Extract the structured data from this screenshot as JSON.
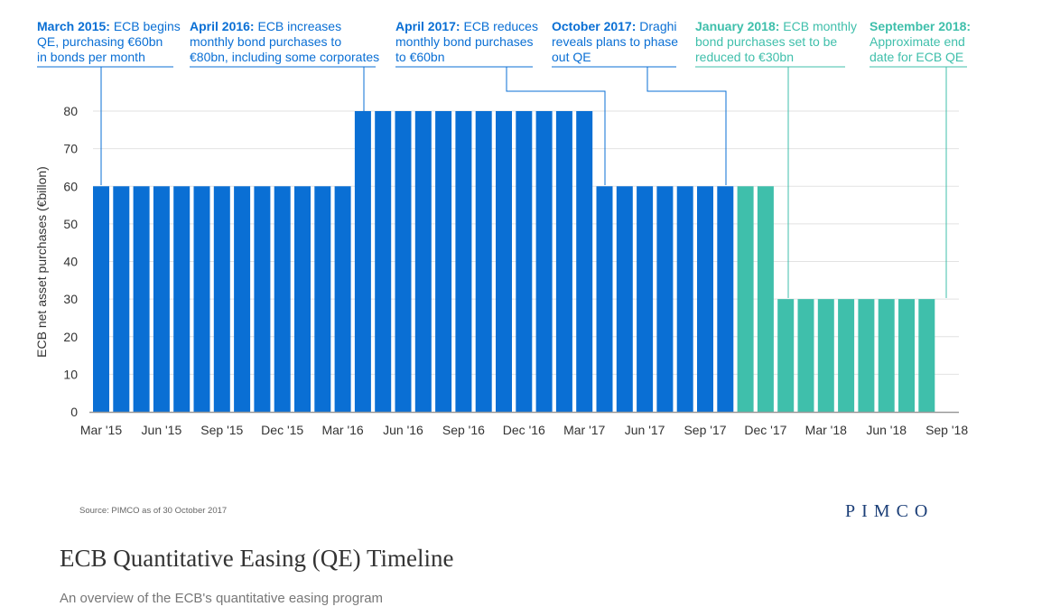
{
  "chart_data": {
    "type": "bar",
    "ylabel": "ECB net asset purchases (€billon)",
    "ylim": [
      0,
      80
    ],
    "yticks": [
      0,
      10,
      20,
      30,
      40,
      50,
      60,
      70,
      80
    ],
    "grid": true,
    "categories": [
      "Mar 2015",
      "Apr 2015",
      "May 2015",
      "Jun 2015",
      "Jul 2015",
      "Aug 2015",
      "Sep 2015",
      "Oct 2015",
      "Nov 2015",
      "Dec 2015",
      "Jan 2016",
      "Feb 2016",
      "Mar 2016",
      "Apr 2016",
      "May 2016",
      "Jun 2016",
      "Jul 2016",
      "Aug 2016",
      "Sep 2016",
      "Oct 2016",
      "Nov 2016",
      "Dec 2016",
      "Jan 2017",
      "Feb 2017",
      "Mar 2017",
      "Apr 2017",
      "May 2017",
      "Jun 2017",
      "Jul 2017",
      "Aug 2017",
      "Sep 2017",
      "Oct 2017",
      "Nov 2017",
      "Dec 2017",
      "Jan 2018",
      "Feb 2018",
      "Mar 2018",
      "Apr 2018",
      "May 2018",
      "Jun 2018",
      "Jul 2018",
      "Aug 2018",
      "Sep 2018"
    ],
    "xtick_labels": [
      {
        "index": 0,
        "label": "Mar '15"
      },
      {
        "index": 3,
        "label": "Jun '15"
      },
      {
        "index": 6,
        "label": "Sep '15"
      },
      {
        "index": 9,
        "label": "Dec '15"
      },
      {
        "index": 12,
        "label": "Mar '16"
      },
      {
        "index": 15,
        "label": "Jun '16"
      },
      {
        "index": 18,
        "label": "Sep '16"
      },
      {
        "index": 21,
        "label": "Dec '16"
      },
      {
        "index": 24,
        "label": "Mar '17"
      },
      {
        "index": 27,
        "label": "Jun '17"
      },
      {
        "index": 30,
        "label": "Sep '17"
      },
      {
        "index": 33,
        "label": "Dec '17"
      },
      {
        "index": 36,
        "label": "Mar '18"
      },
      {
        "index": 39,
        "label": "Jun '18"
      },
      {
        "index": 42,
        "label": "Sep '18"
      }
    ],
    "series": [
      {
        "values": [
          60,
          60,
          60,
          60,
          60,
          60,
          60,
          60,
          60,
          60,
          60,
          60,
          60,
          80,
          80,
          80,
          80,
          80,
          80,
          80,
          80,
          80,
          80,
          80,
          80,
          60,
          60,
          60,
          60,
          60,
          60,
          60,
          null,
          null,
          null,
          null,
          null,
          null,
          null,
          null,
          null,
          null,
          null
        ],
        "color": "#0a6fd4"
      },
      {
        "values": [
          null,
          null,
          null,
          null,
          null,
          null,
          null,
          null,
          null,
          null,
          null,
          null,
          null,
          null,
          null,
          null,
          null,
          null,
          null,
          null,
          null,
          null,
          null,
          null,
          null,
          null,
          null,
          null,
          null,
          null,
          null,
          null,
          60,
          60,
          30,
          30,
          30,
          30,
          30,
          30,
          30,
          30,
          null
        ],
        "color": "#3fbfab"
      }
    ],
    "annotations": [
      {
        "bold": "March 2015:",
        "lines": [
          "ECB begins",
          "QE, purchasing €60bn",
          "in bonds per month"
        ],
        "target_index": 0,
        "color": "#0a6fd4"
      },
      {
        "bold": "April 2016:",
        "lines": [
          "ECB increases",
          "monthly bond purchases to",
          "€80bn, including some corporates"
        ],
        "target_index": 13,
        "color": "#0a6fd4"
      },
      {
        "bold": "April 2017:",
        "lines": [
          "ECB reduces",
          "monthly bond purchases",
          "to €60bn"
        ],
        "target_index": 25,
        "color": "#0a6fd4"
      },
      {
        "bold": "October 2017:",
        "lines": [
          "Draghi",
          "reveals plans to phase",
          "out QE"
        ],
        "target_index": 31,
        "color": "#0a6fd4"
      },
      {
        "bold": "January 2018:",
        "lines": [
          "ECB monthly",
          "bond purchases set to be",
          "reduced to €30bn"
        ],
        "target_index": 34,
        "color": "#3fbfab"
      },
      {
        "bold": "September 2018:",
        "lines": [
          "",
          "Approximate end",
          "date for ECB QE"
        ],
        "target_index": 42,
        "color": "#3fbfab"
      }
    ]
  },
  "footer": {
    "source": "Source: PIMCO as of 30 October 2017",
    "brand": "PIMCO"
  },
  "page": {
    "title": "ECB Quantitative Easing (QE) Timeline",
    "subtitle": "An overview of the ECB's quantitative easing program"
  }
}
